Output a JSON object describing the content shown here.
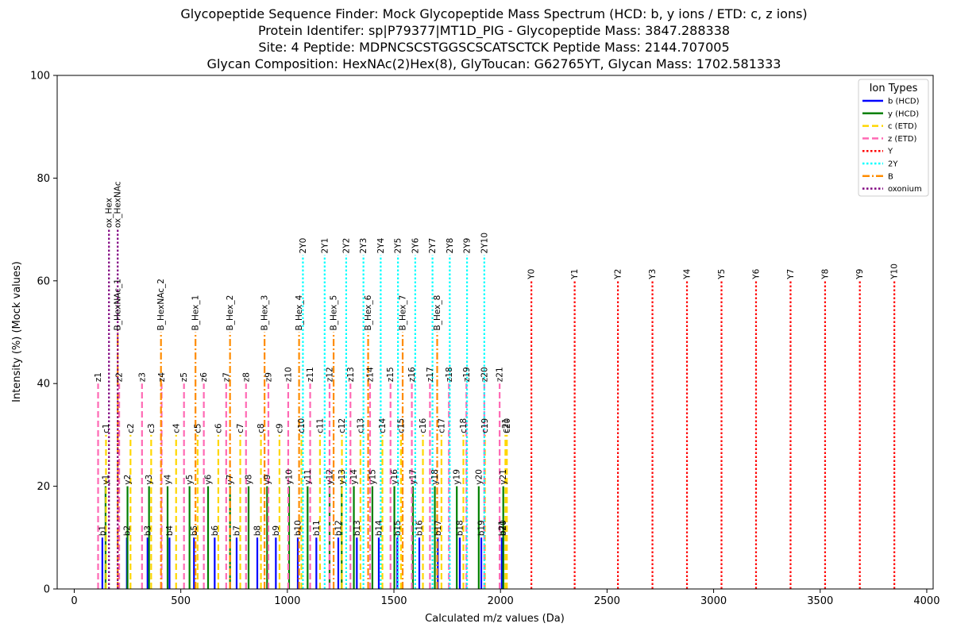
{
  "chart_data": {
    "type": "stem",
    "title_lines": [
      "Glycopeptide Sequence Finder: Mock Glycopeptide Mass Spectrum (HCD: b, y ions / ETD: c, z ions)",
      "Protein Identifer: sp|P79377|MT1D_PIG - Glycopeptide Mass: 3847.288338",
      "Site: 4 Peptide: MDPNCSCSTGGSCSCATSCTCK Peptide Mass: 2144.707005",
      "Glycan Composition: HexNAc(2)Hex(8), GlyToucan: G62765YT, Glycan Mass: 1702.581333"
    ],
    "xlabel": "Calculated m/z values (Da)",
    "ylabel": "Intensity (%) (Mock values)",
    "xlim": [
      -80,
      4030
    ],
    "ylim": [
      0,
      100
    ],
    "xticks": [
      0,
      500,
      1000,
      1500,
      2000,
      2500,
      3000,
      3500,
      4000
    ],
    "yticks": [
      0,
      20,
      40,
      60,
      80,
      100
    ],
    "legend": {
      "title": "Ion Types",
      "position": "top-right",
      "entries": [
        {
          "label": "b (HCD)",
          "color": "#0000ff",
          "style": "solid"
        },
        {
          "label": "y (HCD)",
          "color": "#008000",
          "style": "solid"
        },
        {
          "label": "c (ETD)",
          "color": "#ffd700",
          "style": "dashed"
        },
        {
          "label": "z (ETD)",
          "color": "#ff69b4",
          "style": "dashed"
        },
        {
          "label": "Y",
          "color": "#ff0000",
          "style": "dotted"
        },
        {
          "label": "2Y",
          "color": "#00ffff",
          "style": "dotted"
        },
        {
          "label": "B",
          "color": "#ff8c00",
          "style": "dashdot"
        },
        {
          "label": "oxonium",
          "color": "#800080",
          "style": "dotted"
        }
      ]
    },
    "series": [
      {
        "name": "b (HCD)",
        "color": "#0000ff",
        "style": "solid",
        "intensity": 10,
        "labels": [
          "b1",
          "b2",
          "b3",
          "b4",
          "b5",
          "b6",
          "b7",
          "b8",
          "b9",
          "b10",
          "b11",
          "b12",
          "b13",
          "b14",
          "b15",
          "b16",
          "b17",
          "b18",
          "b19",
          "b20",
          "b21"
        ],
        "x": [
          132,
          247,
          344,
          447,
          562,
          659,
          762,
          859,
          946,
          1049,
          1136,
          1239,
          1326,
          1429,
          1516,
          1619,
          1706,
          1809,
          1910,
          2013,
          2006
        ]
      },
      {
        "name": "y (HCD)",
        "color": "#008000",
        "style": "solid",
        "intensity": 20,
        "labels": [
          "y1",
          "y2",
          "y3",
          "y4",
          "y5",
          "y6",
          "y7",
          "y8",
          "y9",
          "y10",
          "y11",
          "y12",
          "y13",
          "y14",
          "y15",
          "y16",
          "y17",
          "y18",
          "y19",
          "y20",
          "y21"
        ],
        "x": [
          147,
          250,
          351,
          438,
          541,
          628,
          731,
          818,
          905,
          1008,
          1095,
          1198,
          1255,
          1312,
          1399,
          1502,
          1589,
          1692,
          1795,
          1898,
          2013
        ]
      },
      {
        "name": "c (ETD)",
        "color": "#ffd700",
        "style": "dashed",
        "intensity": 30,
        "labels": [
          "c1",
          "c2",
          "c3",
          "c4",
          "c5",
          "c6",
          "c7",
          "c8",
          "c9",
          "c10",
          "c11",
          "c12",
          "c13",
          "c14",
          "c15",
          "c16",
          "c17",
          "c18",
          "c19",
          "c20",
          "c21"
        ],
        "x": [
          149,
          264,
          361,
          478,
          579,
          676,
          779,
          876,
          963,
          1066,
          1153,
          1256,
          1343,
          1446,
          1533,
          1636,
          1723,
          1826,
          1927,
          2030,
          2023
        ]
      },
      {
        "name": "z (ETD)",
        "color": "#ff69b4",
        "style": "dashed",
        "intensity": 40,
        "labels": [
          "z1",
          "z2",
          "z3",
          "z4",
          "z5",
          "z6",
          "z7",
          "z8",
          "z9",
          "z10",
          "z11",
          "z12",
          "z13",
          "z14",
          "z15",
          "z16",
          "z17",
          "z18",
          "z19",
          "z20",
          "z21"
        ],
        "x": [
          112,
          211,
          318,
          410,
          515,
          608,
          713,
          806,
          911,
          1004,
          1107,
          1198,
          1296,
          1388,
          1484,
          1584,
          1669,
          1758,
          1840,
          1924,
          1996
        ]
      },
      {
        "name": "2Y",
        "color": "#00ffff",
        "style": "dotted",
        "intensity": 65,
        "labels": [
          "2Y0",
          "2Y1",
          "2Y2",
          "2Y3",
          "2Y4",
          "2Y5",
          "2Y6",
          "2Y7",
          "2Y8",
          "2Y9",
          "2Y10"
        ],
        "x": [
          1073,
          1175,
          1276,
          1357,
          1438,
          1519,
          1600,
          1681,
          1762,
          1843,
          1924
        ]
      },
      {
        "name": "Y",
        "color": "#ff0000",
        "style": "dotted",
        "intensity": 60,
        "labels": [
          "Y0",
          "Y1",
          "Y2",
          "Y3",
          "Y4",
          "Y5",
          "Y6",
          "Y7",
          "Y8",
          "Y9",
          "Y10"
        ],
        "x": [
          2145,
          2348,
          2551,
          2713,
          2875,
          3037,
          3199,
          3361,
          3523,
          3686,
          3848
        ]
      },
      {
        "name": "B",
        "color": "#ff8c00",
        "style": "dashdot",
        "intensity": 50,
        "labels": [
          "B_HexNAc_1",
          "B_HexNAc_2",
          "B_Hex_1",
          "B_Hex_2",
          "B_Hex_3",
          "B_Hex_4",
          "B_Hex_5",
          "B_Hex_6",
          "B_Hex_7",
          "B_Hex_8"
        ],
        "x": [
          204,
          407,
          569,
          731,
          893,
          1055,
          1217,
          1379,
          1541,
          1703
        ]
      },
      {
        "name": "oxonium",
        "color": "#800080",
        "style": "dotted",
        "intensity": 70,
        "labels": [
          "ox_Hex",
          "ox_HexNAc"
        ],
        "x": [
          163,
          204
        ]
      }
    ]
  }
}
